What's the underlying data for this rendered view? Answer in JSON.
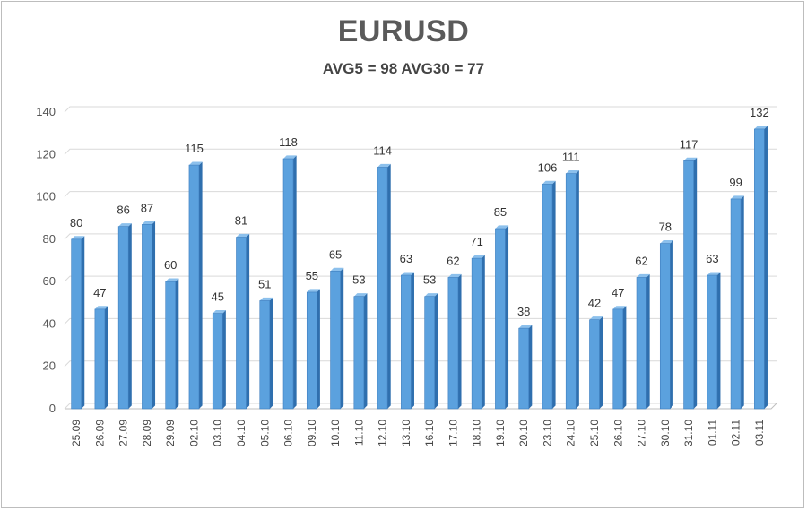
{
  "title": "EURUSD",
  "subtitle": "AVG5 = 98 AVG30 = 77",
  "colors": {
    "bar_front": "#5ba1de",
    "bar_side": "#2f6fae",
    "bar_top": "#8cc0ec",
    "grid": "#d9d9d9"
  },
  "chart_data": {
    "type": "bar",
    "title": "EURUSD",
    "subtitle": "AVG5 = 98 AVG30 = 77",
    "xlabel": "",
    "ylabel": "",
    "ylim": [
      0,
      140
    ],
    "yticks": [
      0,
      20,
      40,
      60,
      80,
      100,
      120,
      140
    ],
    "grid": true,
    "legend": "none",
    "categories": [
      "25.09",
      "26.09",
      "27.09",
      "28.09",
      "29.09",
      "02.10",
      "03.10",
      "04.10",
      "05.10",
      "06.10",
      "09.10",
      "10.10",
      "11.10",
      "12.10",
      "13.10",
      "16.10",
      "17.10",
      "18.10",
      "19.10",
      "20.10",
      "23.10",
      "24.10",
      "25.10",
      "26.10",
      "27.10",
      "30.10",
      "31.10",
      "01.11",
      "02.11",
      "03.11"
    ],
    "values": [
      80,
      47,
      86,
      87,
      60,
      115,
      45,
      81,
      51,
      118,
      55,
      65,
      53,
      114,
      63,
      53,
      62,
      71,
      85,
      38,
      106,
      111,
      42,
      47,
      62,
      78,
      117,
      63,
      99,
      132
    ]
  }
}
